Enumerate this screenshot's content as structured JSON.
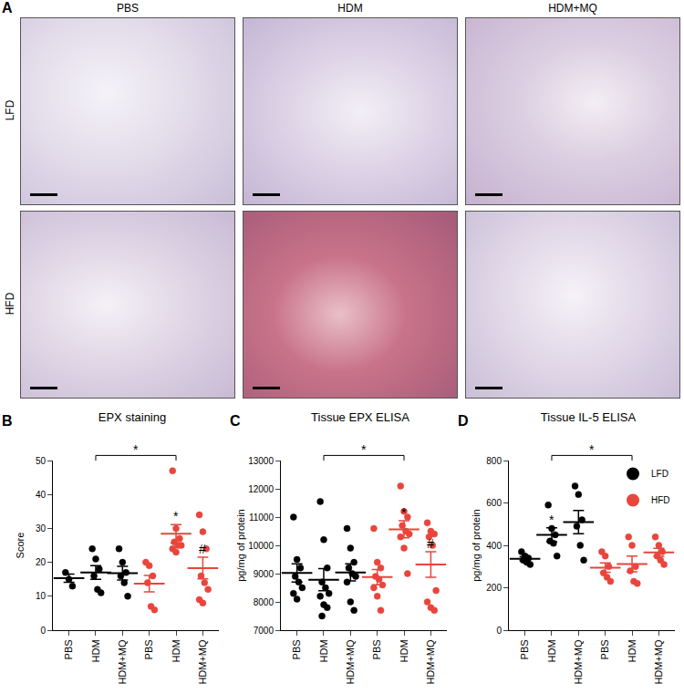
{
  "figure": {
    "panel_a": {
      "label": "A",
      "columns": [
        "PBS",
        "HDM",
        "HDM+MQ"
      ],
      "rows": [
        "LFD",
        "HFD"
      ]
    }
  },
  "chart_data": [
    {
      "type": "scatter",
      "panel": "B",
      "title": "EPX staining",
      "y_label": "Score",
      "categories": [
        "PBS",
        "HDM",
        "HDM+MQ",
        "PBS",
        "HDM",
        "HDM+MQ"
      ],
      "ylim": [
        0,
        50
      ],
      "yticks": [
        0,
        10,
        20,
        30,
        40,
        50
      ],
      "grid": false,
      "series": [
        {
          "name": "LFD",
          "color": "#000000",
          "marker": "circle",
          "positions": [
            0,
            1,
            2
          ],
          "points": [
            [
              17,
              15,
              13
            ],
            [
              24,
              21,
              18,
              16,
              12,
              11
            ],
            [
              24,
              20,
              17,
              16,
              14,
              10
            ]
          ],
          "means": [
            15.3,
            17,
            16.8
          ],
          "errors": [
            1.2,
            2,
            2
          ]
        },
        {
          "name": "HFD",
          "color": "#e8453c",
          "marker": "circle",
          "positions": [
            3,
            4,
            5
          ],
          "points": [
            [
              20,
              19,
              16,
              14,
              7,
              6
            ],
            [
              47,
              30,
              27,
              26,
              25,
              25,
              24,
              23
            ],
            [
              34,
              29,
              24,
              16,
              14,
              12,
              9,
              8
            ]
          ],
          "means": [
            13.7,
            28.4,
            18.3
          ],
          "errors": [
            2.4,
            2.7,
            3.2
          ]
        }
      ],
      "annotations": [
        {
          "text": "*",
          "position": 4,
          "series": "HFD"
        },
        {
          "text": "#",
          "position": 5,
          "series": "HFD"
        }
      ],
      "brackets": [
        {
          "text": "*",
          "from": 1,
          "to": 4
        }
      ]
    },
    {
      "type": "scatter",
      "panel": "C",
      "title": "Tissue EPX ELISA",
      "y_label": "pg/mg of protein",
      "categories": [
        "PBS",
        "HDM",
        "HDM+MQ",
        "PBS",
        "HDM",
        "HDM+MQ"
      ],
      "ylim": [
        7000,
        13000
      ],
      "yticks": [
        7000,
        8000,
        9000,
        10000,
        11000,
        12000,
        13000
      ],
      "grid": false,
      "series": [
        {
          "name": "LFD",
          "color": "#000000",
          "marker": "circle",
          "positions": [
            0,
            1,
            2
          ],
          "points": [
            [
              11000,
              9500,
              9200,
              8900,
              8700,
              8500,
              8300,
              8100
            ],
            [
              11550,
              10200,
              9200,
              8700,
              8500,
              8300,
              8200,
              7900,
              7800,
              7500
            ],
            [
              10600,
              9900,
              9400,
              9200,
              9000,
              8900,
              8700,
              8000,
              7700
            ]
          ],
          "means": [
            9025,
            8785,
            9044
          ],
          "errors": [
            320,
            390,
            300
          ]
        },
        {
          "name": "HFD",
          "color": "#e8453c",
          "marker": "circle",
          "positions": [
            3,
            4,
            5
          ],
          "points": [
            [
              10600,
              9400,
              9200,
              8900,
              8800,
              8600,
              8500,
              8200,
              7700
            ],
            [
              12100,
              11200,
              11000,
              10700,
              10500,
              10400,
              10300,
              9900,
              9000
            ],
            [
              10800,
              10500,
              10400,
              10300,
              10000,
              8400,
              8000,
              7800,
              7700
            ]
          ],
          "means": [
            8878,
            10567,
            9322
          ],
          "errors": [
            270,
            300,
            450
          ]
        }
      ],
      "annotations": [
        {
          "text": "*",
          "position": 4,
          "series": "HFD"
        },
        {
          "text": "#",
          "position": 5,
          "series": "HFD"
        }
      ],
      "brackets": [
        {
          "text": "*",
          "from": 1,
          "to": 4
        }
      ]
    },
    {
      "type": "scatter",
      "panel": "D",
      "title": "Tissue IL-5 ELISA",
      "y_label": "pg/mg of protein",
      "categories": [
        "PBS",
        "HDM",
        "HDM+MQ",
        "PBS",
        "HDM",
        "HDM+MQ"
      ],
      "ylim": [
        0,
        800
      ],
      "yticks": [
        0,
        200,
        400,
        600,
        800
      ],
      "grid": false,
      "legend": "top right",
      "series": [
        {
          "name": "LFD",
          "color": "#000000",
          "marker": "circle",
          "positions": [
            0,
            1,
            2
          ],
          "points": [
            [
              370,
              350,
              340,
              330,
              320,
              310
            ],
            [
              590,
              480,
              450,
              420,
              410,
              350
            ],
            [
              680,
              640,
              520,
              490,
              400,
              330
            ]
          ],
          "means": [
            337,
            450,
            510
          ],
          "errors": [
            9,
            33,
            55
          ]
        },
        {
          "name": "HFD",
          "color": "#e8453c",
          "marker": "circle",
          "positions": [
            3,
            4,
            5
          ],
          "points": [
            [
              370,
              350,
              300,
              270,
              250,
              230
            ],
            [
              440,
              400,
              300,
              280,
              230,
              220
            ],
            [
              440,
              400,
              370,
              350,
              330,
              310
            ]
          ],
          "means": [
            295,
            312,
            367
          ],
          "errors": [
            22,
            37,
            19
          ]
        }
      ],
      "annotations": [
        {
          "text": "*",
          "position": 1,
          "series": "LFD"
        }
      ],
      "brackets": [
        {
          "text": "*",
          "from": 1,
          "to": 4
        }
      ]
    }
  ]
}
